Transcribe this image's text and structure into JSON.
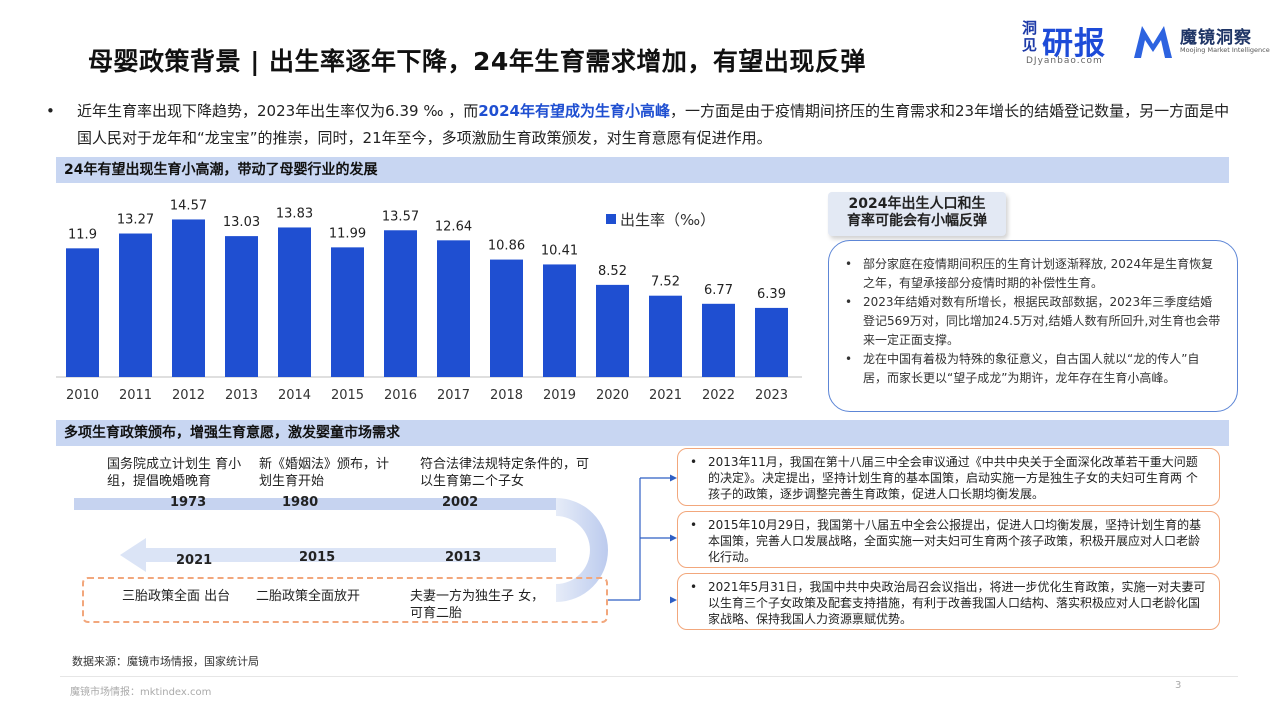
{
  "title": "母婴政策背景 | 出生率逐年下降，24年生育需求增加，有望出现反弹",
  "logos": {
    "djyanbao_vertical": "洞见",
    "djyanbao_main": "研报",
    "djyanbao_url": "DJyanbao.com",
    "mojing_name": "魔镜洞察",
    "mojing_sub": "Moojing Market Intelligence"
  },
  "intro": {
    "bullet": "•",
    "part1": "近年生育率出现下降趋势，2023年出生率仅为6.39 ‰ ，而",
    "highlight": "2024年有望成为生育小高峰",
    "part2": "，一方面是由于疫情期间挤压的生育需求和23年增长的结婚登记数量，另一方面是中国人民对于龙年和“龙宝宝”的推崇，同时，21年至今，多项激励生育政策颁发，对生育意愿有促进作用。"
  },
  "section1_title": "24年有望出现生育小高潮，带动了母婴行业的发展",
  "section2_title": "多项生育政策颁布，增强生育意愿，激发婴童市场需求",
  "chart_data": {
    "type": "bar",
    "categories": [
      "2010",
      "2011",
      "2012",
      "2013",
      "2014",
      "2015",
      "2016",
      "2017",
      "2018",
      "2019",
      "2020",
      "2021",
      "2022",
      "2023"
    ],
    "series": [
      {
        "name": "出生率（‰）",
        "values": [
          11.9,
          13.27,
          14.57,
          13.03,
          13.83,
          11.99,
          13.57,
          12.64,
          10.86,
          10.41,
          8.52,
          7.52,
          6.77,
          6.39
        ]
      }
    ],
    "value_labels": [
      "11.9",
      "13.27",
      "14.57",
      "13.03",
      "13.83",
      "11.99",
      "13.57",
      "12.64",
      "10.86",
      "10.41",
      "8.52",
      "7.52",
      "6.77",
      "6.39"
    ],
    "ylim": [
      0,
      16
    ],
    "grid": false,
    "legend": "top-right",
    "color": "#1f4fd1"
  },
  "side": {
    "tag_line1": "2024年出生人口和生",
    "tag_line2": "育率可能会有小幅反弹",
    "items": [
      "部分家庭在疫情期间积压的生育计划逐渐释放, 2024年是生育恢复之年，有望承接部分疫情时期的补偿性生育。",
      "2023年结婚对数有所增长，根据民政部数据，2023年三季度结婚登记569万对，同比增加24.5万对,结婚人数有所回升,对生育也会带来一定正面支撑。",
      "龙在中国有着极为特殊的象征意义，自古国人就以“龙的传人”自居，而家长更以“望子成龙”为期许，龙年存在生育小高峰。"
    ]
  },
  "timeline": {
    "top": [
      {
        "year": "1973",
        "text": "国务院成立计划生 育小组，提倡晚婚晚育"
      },
      {
        "year": "1980",
        "text": "新《婚姻法》颁布，计划生育开始"
      },
      {
        "year": "2002",
        "text": "符合法律法规特定条件的，可以生育第二个子女"
      }
    ],
    "bottom": [
      {
        "year": "2021",
        "text": "三胎政策全面 出台"
      },
      {
        "year": "2015",
        "text": "二胎政策全面放开"
      },
      {
        "year": "2013",
        "text": "夫妻一方为独生子 女，可育二胎"
      }
    ]
  },
  "policies": [
    "2013年11月，我国在第十八届三中全会审议通过《中共中央关于全面深化改革若干重大问题 的决定》。决定提出，坚持计划生育的基本国策，启动实施一方是独生子女的夫妇可生育两 个孩子的政策，逐步调整完善生育政策，促进人口长期均衡发展。",
    "2015年10月29日，我国第十八届五中全会公报提出，促进人口均衡发展，坚持计划生育的基本国策，完善人口发展战略，全面实施一对夫妇可生育两个孩子政策，积极开展应对人口老龄化行动。",
    "2021年5月31日，我国中共中央政治局召会议指出，将进一步优化生育政策，实施一对夫妻可以生育三个子女政策及配套支持措施，有利于改善我国人口结构、落实积极应对人口老龄化国家战略、保持我国人力资源禀赋优势。"
  ],
  "source": "数据来源：魔镜市场情报，国家统计局",
  "footer": "魔镜市场情报：mktindex.com",
  "page_number": "3"
}
